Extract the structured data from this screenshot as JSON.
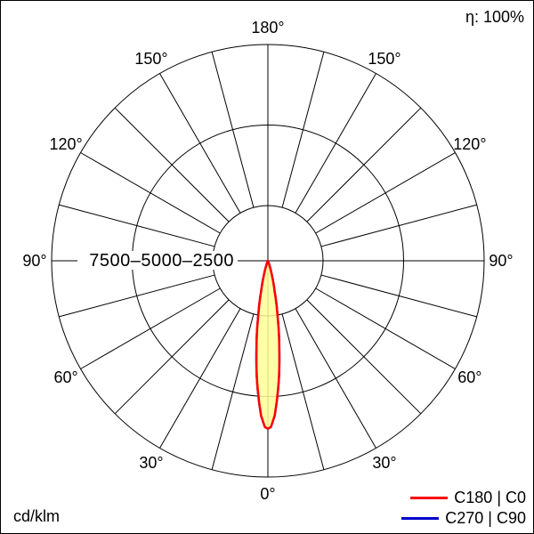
{
  "header": {
    "efficiency": "η: 100%"
  },
  "footer": {
    "unit": "cd/klm"
  },
  "chart_data": {
    "type": "polar",
    "subtype": "luminous-intensity-distribution",
    "unit": "cd/klm",
    "efficiency": "η: 100%",
    "angle_grid_step_deg": 15,
    "angle_labels": [
      {
        "deg": 0,
        "text": "0°"
      },
      {
        "deg": 30,
        "text": "30°"
      },
      {
        "deg": 60,
        "text": "60°"
      },
      {
        "deg": 90,
        "text": "90°"
      },
      {
        "deg": 120,
        "text": "120°"
      },
      {
        "deg": 150,
        "text": "150°"
      },
      {
        "deg": 180,
        "text": "180°"
      }
    ],
    "radial_ticks": [
      2500,
      5000,
      7500
    ],
    "radial_tick_label": "7500–5000–2500",
    "symmetric": true,
    "series": [
      {
        "name": "C180 | C0",
        "color": "#ff0000",
        "fill": "#ffff99",
        "gamma_deg": [
          0,
          1,
          2.5,
          5,
          7.5,
          10,
          12.5,
          15,
          17.5,
          20,
          22.5,
          25,
          30,
          45,
          60,
          90
        ],
        "values_cd_per_klm": [
          6000,
          5950,
          5600,
          4600,
          3500,
          2500,
          1750,
          1300,
          1050,
          900,
          830,
          790,
          760,
          730,
          710,
          700
        ]
      },
      {
        "name": "C270 | C90",
        "color": "#0000cc",
        "fill": "none",
        "gamma_deg": [
          0,
          1,
          2.5,
          5,
          7.5,
          10,
          12.5,
          15,
          17.5,
          20,
          22.5,
          25,
          30,
          45,
          60,
          90
        ],
        "values_cd_per_klm": [
          6000,
          5950,
          5600,
          4600,
          3500,
          2500,
          1750,
          1300,
          1050,
          900,
          830,
          790,
          760,
          730,
          710,
          700
        ]
      }
    ]
  }
}
